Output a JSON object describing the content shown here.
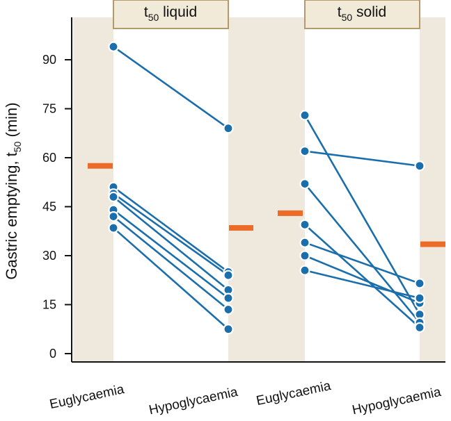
{
  "chart_data": {
    "type": "scatter",
    "ylabel": {
      "main": "Gastric emptying, t",
      "sub": "50",
      "unit": " (min)"
    },
    "ylim": [
      0,
      100
    ],
    "yticks": [
      0,
      15,
      30,
      45,
      60,
      75,
      90
    ],
    "categories": [
      "Euglycaemia",
      "Hypoglycaemia",
      "Euglycaemia",
      "Hypoglycaemia"
    ],
    "panels": [
      {
        "title": {
          "main": "t",
          "sub": "50",
          "rest": " liquid"
        },
        "pairs": [
          [
            94,
            69
          ],
          [
            51,
            25
          ],
          [
            49,
            24
          ],
          [
            48,
            19.5
          ],
          [
            44,
            17
          ],
          [
            42,
            13.5
          ],
          [
            38.5,
            7.5
          ]
        ],
        "means": [
          57.5,
          38.5
        ]
      },
      {
        "title": {
          "main": "t",
          "sub": "50",
          "rest": " solid"
        },
        "pairs": [
          [
            73,
            12
          ],
          [
            62,
            57.5
          ],
          [
            52,
            9.5
          ],
          [
            39.5,
            8
          ],
          [
            34,
            21.5
          ],
          [
            30,
            15.5
          ],
          [
            25.5,
            17
          ]
        ],
        "means": [
          43,
          33.5
        ]
      }
    ],
    "colors": {
      "points": "#1b6eac",
      "lines": "#1b6eac",
      "mean": "#ec6b27",
      "band": "#efe8dc",
      "title_box_fill": "#f1ead9",
      "title_box_border": "#b49a6a"
    }
  }
}
